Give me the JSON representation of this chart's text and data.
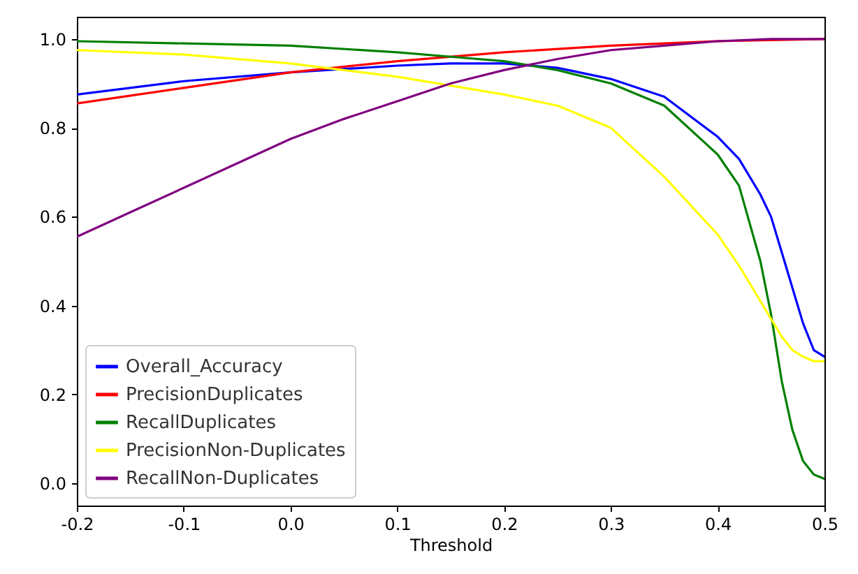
{
  "chart_data": {
    "type": "line",
    "xlabel": "Threshold",
    "xlim": [
      -0.2,
      0.5
    ],
    "ylim": [
      -0.05,
      1.05
    ],
    "xticks": [
      {
        "value": -0.2,
        "label": "-0.2"
      },
      {
        "value": -0.1,
        "label": "-0.1"
      },
      {
        "value": 0,
        "label": "0.0"
      },
      {
        "value": 0.1,
        "label": "0.1"
      },
      {
        "value": 0.2,
        "label": "0.2"
      },
      {
        "value": 0.3,
        "label": "0.3"
      },
      {
        "value": 0.4,
        "label": "0.4"
      },
      {
        "value": 0.5,
        "label": "0.5"
      }
    ],
    "yticks": [
      {
        "value": 0,
        "label": "0.0"
      },
      {
        "value": 0.2,
        "label": "0.2"
      },
      {
        "value": 0.4,
        "label": "0.4"
      },
      {
        "value": 0.6,
        "label": "0.6"
      },
      {
        "value": 0.8,
        "label": "0.8"
      },
      {
        "value": 1,
        "label": "1.0"
      }
    ],
    "grid": false,
    "legend": "bottom left",
    "line_style": "solid",
    "marker": "none",
    "series": [
      {
        "name": "Overall_Accuracy",
        "color": "#0000ff",
        "x": [
          -0.2,
          -0.1,
          0,
          0.1,
          0.15,
          0.2,
          0.25,
          0.3,
          0.35,
          0.4,
          0.42,
          0.44,
          0.45,
          0.46,
          0.47,
          0.48,
          0.49,
          0.5
        ],
        "values": [
          0.875,
          0.905,
          0.925,
          0.94,
          0.945,
          0.945,
          0.935,
          0.91,
          0.87,
          0.78,
          0.73,
          0.65,
          0.6,
          0.52,
          0.44,
          0.36,
          0.3,
          0.285
        ]
      },
      {
        "name": "PrecisionDuplicates",
        "color": "#ff0000",
        "x": [
          -0.2,
          -0.1,
          0,
          0.1,
          0.2,
          0.3,
          0.4,
          0.5
        ],
        "values": [
          0.855,
          0.89,
          0.925,
          0.95,
          0.97,
          0.985,
          0.995,
          1.0
        ]
      },
      {
        "name": "RecallDuplicates",
        "color": "#008000",
        "x": [
          -0.2,
          -0.1,
          0,
          0.1,
          0.15,
          0.2,
          0.25,
          0.3,
          0.35,
          0.4,
          0.42,
          0.44,
          0.45,
          0.46,
          0.47,
          0.48,
          0.49,
          0.5
        ],
        "values": [
          0.995,
          0.99,
          0.985,
          0.97,
          0.96,
          0.95,
          0.93,
          0.9,
          0.85,
          0.74,
          0.67,
          0.5,
          0.38,
          0.23,
          0.12,
          0.05,
          0.02,
          0.01
        ]
      },
      {
        "name": "PrecisionNon-Duplicates",
        "color": "#ffff00",
        "x": [
          -0.2,
          -0.1,
          0,
          0.1,
          0.2,
          0.25,
          0.3,
          0.35,
          0.4,
          0.42,
          0.44,
          0.45,
          0.46,
          0.47,
          0.48,
          0.49,
          0.5
        ],
        "values": [
          0.975,
          0.965,
          0.945,
          0.915,
          0.875,
          0.85,
          0.8,
          0.69,
          0.56,
          0.49,
          0.41,
          0.37,
          0.33,
          0.3,
          0.285,
          0.275,
          0.275
        ]
      },
      {
        "name": "RecallNon-Duplicates",
        "color": "#800080",
        "x": [
          -0.2,
          -0.15,
          -0.1,
          -0.05,
          0,
          0.05,
          0.1,
          0.15,
          0.2,
          0.25,
          0.3,
          0.35,
          0.4,
          0.45,
          0.5
        ],
        "values": [
          0.555,
          0.61,
          0.665,
          0.72,
          0.775,
          0.82,
          0.86,
          0.9,
          0.93,
          0.955,
          0.975,
          0.985,
          0.995,
          1.0,
          1.0
        ]
      }
    ]
  }
}
